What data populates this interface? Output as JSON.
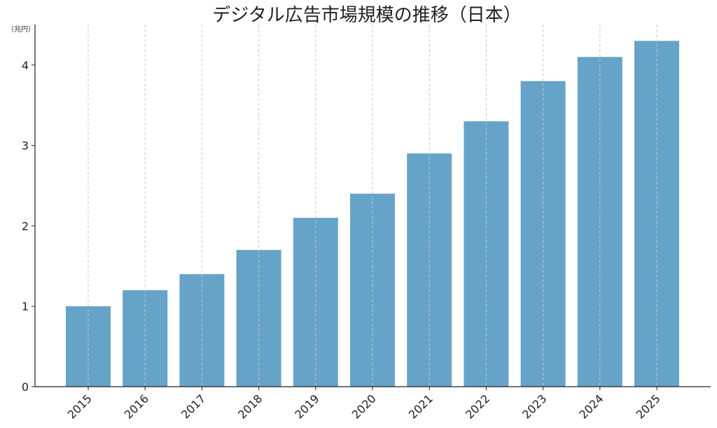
{
  "chart_data": {
    "type": "bar",
    "title": "デジタル広告市場規模の推移（日本）",
    "unit_label": "（兆円）",
    "xlabel": "",
    "ylabel": "",
    "categories": [
      "2015",
      "2016",
      "2017",
      "2018",
      "2019",
      "2020",
      "2021",
      "2022",
      "2023",
      "2024",
      "2025"
    ],
    "values": [
      1.0,
      1.2,
      1.4,
      1.7,
      2.1,
      2.4,
      2.9,
      3.3,
      3.8,
      4.1,
      4.3
    ],
    "y_ticks": [
      "0",
      "1",
      "2",
      "3",
      "4"
    ],
    "ylim": [
      0,
      4.5
    ],
    "grid": "vertical dashed",
    "legend": "none",
    "bar_color": "#66a3c8",
    "grid_color": "#c8c8c8",
    "axis_color": "#222222"
  }
}
